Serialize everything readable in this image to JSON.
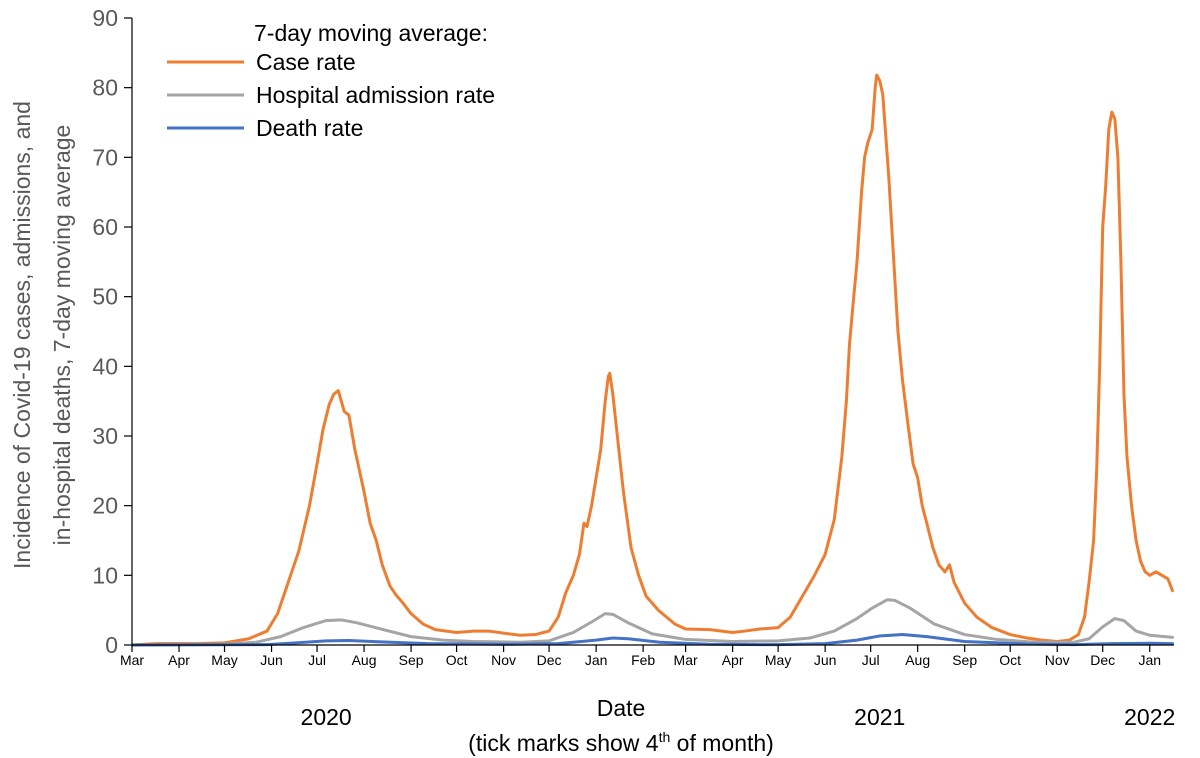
{
  "chart_data": {
    "type": "line",
    "title": "",
    "ylabel_line1": "Incidence of Covid-19 cases, admissions, and",
    "ylabel_line2": "in-hospital deaths, 7-day moving average",
    "xlabel": "Date",
    "xlabel_note_before": "(tick marks show 4",
    "xlabel_note_sup": "th",
    "xlabel_note_after": " of month)",
    "ylim": [
      0,
      90
    ],
    "yticks": [
      "0",
      "10",
      "20",
      "30",
      "40",
      "50",
      "60",
      "70",
      "80",
      "90"
    ],
    "xlim": [
      "2020-03-04",
      "2022-01-20"
    ],
    "month_ticks": [
      {
        "date": "2020-03-04",
        "label": "Mar"
      },
      {
        "date": "2020-04-04",
        "label": "Apr"
      },
      {
        "date": "2020-05-04",
        "label": "May"
      },
      {
        "date": "2020-06-04",
        "label": "Jun"
      },
      {
        "date": "2020-07-04",
        "label": "Jul"
      },
      {
        "date": "2020-08-04",
        "label": "Aug"
      },
      {
        "date": "2020-09-04",
        "label": "Sep"
      },
      {
        "date": "2020-10-04",
        "label": "Oct"
      },
      {
        "date": "2020-11-04",
        "label": "Nov"
      },
      {
        "date": "2020-12-04",
        "label": "Dec"
      },
      {
        "date": "2021-01-04",
        "label": "Jan"
      },
      {
        "date": "2021-02-04",
        "label": "Feb"
      },
      {
        "date": "2021-03-04",
        "label": "Mar"
      },
      {
        "date": "2021-04-04",
        "label": "Apr"
      },
      {
        "date": "2021-05-04",
        "label": "May"
      },
      {
        "date": "2021-06-04",
        "label": "Jun"
      },
      {
        "date": "2021-07-04",
        "label": "Jul"
      },
      {
        "date": "2021-08-04",
        "label": "Aug"
      },
      {
        "date": "2021-09-04",
        "label": "Sep"
      },
      {
        "date": "2021-10-04",
        "label": "Oct"
      },
      {
        "date": "2021-11-04",
        "label": "Nov"
      },
      {
        "date": "2021-12-04",
        "label": "Dec"
      },
      {
        "date": "2022-01-04",
        "label": "Jan"
      }
    ],
    "year_labels": [
      {
        "date": "2020-07-10",
        "label": "2020"
      },
      {
        "date": "2021-07-10",
        "label": "2021"
      },
      {
        "date": "2022-01-04",
        "label": "2022"
      }
    ],
    "legend": {
      "title": "7-day moving average:",
      "position": "top-left"
    },
    "grid": false,
    "series": [
      {
        "name": "Case rate",
        "color": "#ED7D31",
        "points": [
          [
            "2020-03-04",
            0
          ],
          [
            "2020-03-20",
            0.2
          ],
          [
            "2020-04-15",
            0.2
          ],
          [
            "2020-05-04",
            0.3
          ],
          [
            "2020-05-20",
            0.9
          ],
          [
            "2020-06-01",
            2
          ],
          [
            "2020-06-08",
            4.5
          ],
          [
            "2020-06-15",
            9
          ],
          [
            "2020-06-22",
            13.5
          ],
          [
            "2020-06-29",
            20
          ],
          [
            "2020-07-04",
            26
          ],
          [
            "2020-07-08",
            31
          ],
          [
            "2020-07-12",
            34.5
          ],
          [
            "2020-07-15",
            36
          ],
          [
            "2020-07-18",
            36.5
          ],
          [
            "2020-07-20",
            35
          ],
          [
            "2020-07-22",
            33.5
          ],
          [
            "2020-07-25",
            33
          ],
          [
            "2020-07-29",
            28
          ],
          [
            "2020-08-04",
            22
          ],
          [
            "2020-08-08",
            17.5
          ],
          [
            "2020-08-12",
            15
          ],
          [
            "2020-08-16",
            11.5
          ],
          [
            "2020-08-21",
            8.5
          ],
          [
            "2020-08-25",
            7.2
          ],
          [
            "2020-08-29",
            6.2
          ],
          [
            "2020-09-04",
            4.5
          ],
          [
            "2020-09-12",
            3
          ],
          [
            "2020-09-20",
            2.2
          ],
          [
            "2020-10-04",
            1.8
          ],
          [
            "2020-10-15",
            2
          ],
          [
            "2020-10-25",
            2
          ],
          [
            "2020-11-04",
            1.7
          ],
          [
            "2020-11-15",
            1.4
          ],
          [
            "2020-11-25",
            1.5
          ],
          [
            "2020-12-04",
            2
          ],
          [
            "2020-12-10",
            4
          ],
          [
            "2020-12-15",
            7.5
          ],
          [
            "2020-12-20",
            10
          ],
          [
            "2020-12-24",
            13
          ],
          [
            "2020-12-27",
            17.5
          ],
          [
            "2020-12-29",
            17
          ],
          [
            "2021-01-01",
            20
          ],
          [
            "2021-01-04",
            24
          ],
          [
            "2021-01-07",
            28
          ],
          [
            "2021-01-10",
            35
          ],
          [
            "2021-01-12",
            38.5
          ],
          [
            "2021-01-13",
            39
          ],
          [
            "2021-01-15",
            36
          ],
          [
            "2021-01-18",
            30
          ],
          [
            "2021-01-22",
            22
          ],
          [
            "2021-01-27",
            14
          ],
          [
            "2021-02-01",
            10
          ],
          [
            "2021-02-06",
            7
          ],
          [
            "2021-02-14",
            5
          ],
          [
            "2021-02-25",
            3
          ],
          [
            "2021-03-04",
            2.3
          ],
          [
            "2021-03-20",
            2.2
          ],
          [
            "2021-04-04",
            1.8
          ],
          [
            "2021-04-12",
            2
          ],
          [
            "2021-04-22",
            2.3
          ],
          [
            "2021-05-04",
            2.5
          ],
          [
            "2021-05-12",
            4
          ],
          [
            "2021-05-20",
            7
          ],
          [
            "2021-05-28",
            10
          ],
          [
            "2021-06-04",
            13
          ],
          [
            "2021-06-10",
            18
          ],
          [
            "2021-06-15",
            27
          ],
          [
            "2021-06-18",
            35
          ],
          [
            "2021-06-20",
            43
          ],
          [
            "2021-06-22",
            48
          ],
          [
            "2021-06-25",
            55
          ],
          [
            "2021-06-28",
            65
          ],
          [
            "2021-06-30",
            70
          ],
          [
            "2021-07-02",
            72
          ],
          [
            "2021-07-05",
            74
          ],
          [
            "2021-07-07",
            80
          ],
          [
            "2021-07-08",
            81.8
          ],
          [
            "2021-07-10",
            81
          ],
          [
            "2021-07-12",
            79
          ],
          [
            "2021-07-14",
            73
          ],
          [
            "2021-07-16",
            67
          ],
          [
            "2021-07-19",
            56
          ],
          [
            "2021-07-22",
            45
          ],
          [
            "2021-07-25",
            38
          ],
          [
            "2021-07-29",
            31
          ],
          [
            "2021-08-01",
            26
          ],
          [
            "2021-08-04",
            24
          ],
          [
            "2021-08-07",
            20
          ],
          [
            "2021-08-10",
            17.5
          ],
          [
            "2021-08-14",
            14
          ],
          [
            "2021-08-18",
            11.5
          ],
          [
            "2021-08-22",
            10.5
          ],
          [
            "2021-08-25",
            11.5
          ],
          [
            "2021-08-28",
            9
          ],
          [
            "2021-09-04",
            6
          ],
          [
            "2021-09-12",
            4
          ],
          [
            "2021-09-22",
            2.5
          ],
          [
            "2021-10-04",
            1.5
          ],
          [
            "2021-10-15",
            1
          ],
          [
            "2021-10-25",
            0.7
          ],
          [
            "2021-11-04",
            0.5
          ],
          [
            "2021-11-12",
            0.7
          ],
          [
            "2021-11-18",
            1.5
          ],
          [
            "2021-11-22",
            4
          ],
          [
            "2021-11-25",
            9
          ],
          [
            "2021-11-28",
            15
          ],
          [
            "2021-11-30",
            25
          ],
          [
            "2021-12-02",
            40
          ],
          [
            "2021-12-04",
            60
          ],
          [
            "2021-12-06",
            66
          ],
          [
            "2021-12-08",
            74
          ],
          [
            "2021-12-10",
            76.5
          ],
          [
            "2021-12-12",
            75.5
          ],
          [
            "2021-12-14",
            70
          ],
          [
            "2021-12-16",
            55
          ],
          [
            "2021-12-18",
            36
          ],
          [
            "2021-12-20",
            27
          ],
          [
            "2021-12-23",
            20
          ],
          [
            "2021-12-26",
            15
          ],
          [
            "2021-12-29",
            12
          ],
          [
            "2022-01-01",
            10.5
          ],
          [
            "2022-01-04",
            10
          ],
          [
            "2022-01-08",
            10.5
          ],
          [
            "2022-01-12",
            10
          ],
          [
            "2022-01-16",
            9.5
          ],
          [
            "2022-01-19",
            7.8
          ]
        ]
      },
      {
        "name": "Hospital admission rate",
        "color": "#A5A5A5",
        "points": [
          [
            "2020-03-04",
            0
          ],
          [
            "2020-05-04",
            0.1
          ],
          [
            "2020-05-25",
            0.4
          ],
          [
            "2020-06-10",
            1.2
          ],
          [
            "2020-06-25",
            2.5
          ],
          [
            "2020-07-10",
            3.5
          ],
          [
            "2020-07-20",
            3.6
          ],
          [
            "2020-07-30",
            3.2
          ],
          [
            "2020-08-15",
            2.3
          ],
          [
            "2020-09-04",
            1.2
          ],
          [
            "2020-09-25",
            0.7
          ],
          [
            "2020-10-15",
            0.5
          ],
          [
            "2020-11-15",
            0.4
          ],
          [
            "2020-12-04",
            0.6
          ],
          [
            "2020-12-20",
            1.8
          ],
          [
            "2021-01-01",
            3.3
          ],
          [
            "2021-01-10",
            4.5
          ],
          [
            "2021-01-15",
            4.4
          ],
          [
            "2021-01-25",
            3.2
          ],
          [
            "2021-02-10",
            1.6
          ],
          [
            "2021-03-04",
            0.8
          ],
          [
            "2021-04-04",
            0.5
          ],
          [
            "2021-05-04",
            0.6
          ],
          [
            "2021-05-25",
            1
          ],
          [
            "2021-06-10",
            2
          ],
          [
            "2021-06-25",
            3.8
          ],
          [
            "2021-07-05",
            5.3
          ],
          [
            "2021-07-15",
            6.5
          ],
          [
            "2021-07-20",
            6.4
          ],
          [
            "2021-07-30",
            5.3
          ],
          [
            "2021-08-15",
            3
          ],
          [
            "2021-09-04",
            1.5
          ],
          [
            "2021-09-25",
            0.8
          ],
          [
            "2021-10-20",
            0.4
          ],
          [
            "2021-11-15",
            0.4
          ],
          [
            "2021-11-25",
            0.9
          ],
          [
            "2021-12-04",
            2.6
          ],
          [
            "2021-12-12",
            3.8
          ],
          [
            "2021-12-18",
            3.5
          ],
          [
            "2021-12-26",
            2
          ],
          [
            "2022-01-04",
            1.4
          ],
          [
            "2022-01-19",
            1.1
          ]
        ]
      },
      {
        "name": "Death rate",
        "color": "#4472C4",
        "points": [
          [
            "2020-03-04",
            0
          ],
          [
            "2020-06-01",
            0.05
          ],
          [
            "2020-06-20",
            0.3
          ],
          [
            "2020-07-10",
            0.6
          ],
          [
            "2020-07-25",
            0.65
          ],
          [
            "2020-08-15",
            0.45
          ],
          [
            "2020-09-15",
            0.2
          ],
          [
            "2020-11-04",
            0.1
          ],
          [
            "2020-12-10",
            0.2
          ],
          [
            "2021-01-04",
            0.7
          ],
          [
            "2021-01-15",
            1
          ],
          [
            "2021-01-25",
            0.9
          ],
          [
            "2021-02-15",
            0.4
          ],
          [
            "2021-03-20",
            0.1
          ],
          [
            "2021-05-04",
            0.05
          ],
          [
            "2021-06-04",
            0.2
          ],
          [
            "2021-06-25",
            0.7
          ],
          [
            "2021-07-10",
            1.3
          ],
          [
            "2021-07-25",
            1.5
          ],
          [
            "2021-08-10",
            1.2
          ],
          [
            "2021-09-04",
            0.5
          ],
          [
            "2021-10-15",
            0.15
          ],
          [
            "2021-11-15",
            0.05
          ],
          [
            "2021-12-10",
            0.2
          ],
          [
            "2022-01-04",
            0.25
          ],
          [
            "2022-01-19",
            0.2
          ]
        ]
      }
    ]
  }
}
